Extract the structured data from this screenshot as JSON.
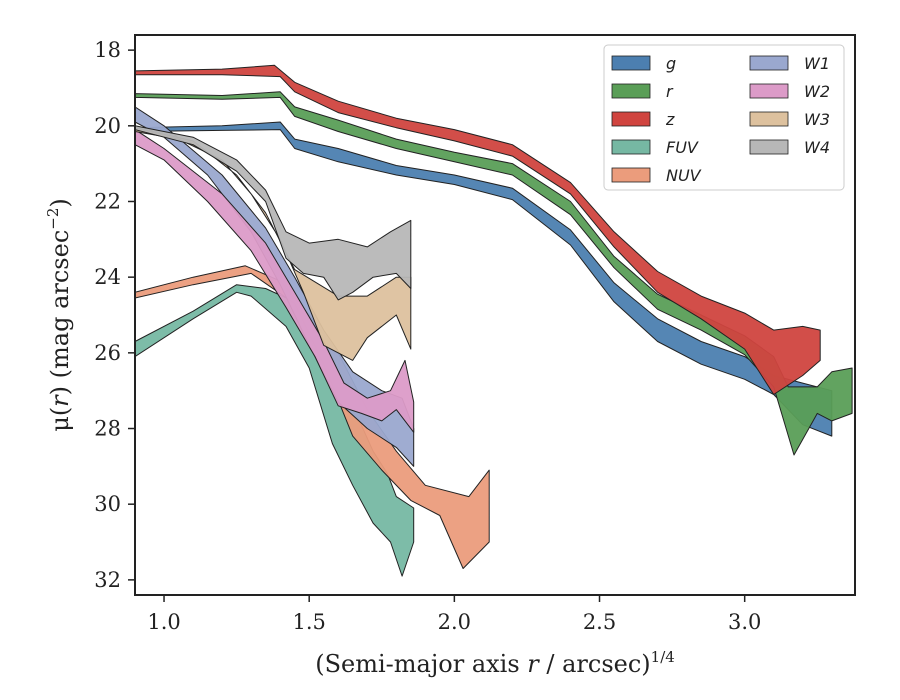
{
  "chart_data": {
    "type": "area",
    "xlabel": {
      "main": "(Semi-major axis ",
      "var": "r",
      "rest": " / arcsec)",
      "sup": "1/4"
    },
    "ylabel": {
      "main": "μ(",
      "var": "r",
      "rest": ") (mag arcsec",
      "sup": "−2",
      "end": ")"
    },
    "xlim": [
      0.9,
      3.38
    ],
    "ylim": [
      32.4,
      17.6
    ],
    "y_inverted": true,
    "xticks": [
      1.0,
      1.5,
      2.0,
      2.5,
      3.0
    ],
    "xtick_labels": [
      "1.0",
      "1.5",
      "2.0",
      "2.5",
      "3.0"
    ],
    "yticks": [
      18,
      20,
      22,
      24,
      26,
      28,
      30,
      32
    ],
    "ytick_labels": [
      "18",
      "20",
      "22",
      "24",
      "26",
      "28",
      "30",
      "32"
    ],
    "legend_position": "top-right",
    "legend_columns": 2,
    "series": [
      {
        "name": "g",
        "color": "#4c7fb0",
        "upper": [
          [
            0.9,
            20.05
          ],
          [
            1.2,
            20.0
          ],
          [
            1.4,
            19.9
          ],
          [
            1.45,
            20.35
          ],
          [
            1.6,
            20.6
          ],
          [
            1.8,
            21.05
          ],
          [
            2.0,
            21.3
          ],
          [
            2.2,
            21.65
          ],
          [
            2.4,
            22.75
          ],
          [
            2.55,
            24.15
          ],
          [
            2.7,
            25.1
          ],
          [
            2.85,
            25.7
          ],
          [
            3.0,
            26.1
          ],
          [
            3.1,
            26.6
          ],
          [
            3.2,
            26.8
          ],
          [
            3.3,
            27.0
          ]
        ],
        "lower": [
          [
            3.3,
            28.2
          ],
          [
            3.2,
            27.9
          ],
          [
            3.1,
            27.1
          ],
          [
            3.0,
            26.7
          ],
          [
            2.85,
            26.3
          ],
          [
            2.7,
            25.7
          ],
          [
            2.55,
            24.65
          ],
          [
            2.4,
            23.15
          ],
          [
            2.2,
            21.95
          ],
          [
            2.0,
            21.55
          ],
          [
            1.8,
            21.3
          ],
          [
            1.6,
            20.95
          ],
          [
            1.45,
            20.6
          ],
          [
            1.4,
            20.1
          ],
          [
            1.2,
            20.12
          ],
          [
            0.9,
            20.15
          ]
        ]
      },
      {
        "name": "r",
        "color": "#5a9e57",
        "upper": [
          [
            0.9,
            19.15
          ],
          [
            1.2,
            19.2
          ],
          [
            1.4,
            19.1
          ],
          [
            1.45,
            19.5
          ],
          [
            1.6,
            19.85
          ],
          [
            1.8,
            20.35
          ],
          [
            2.0,
            20.7
          ],
          [
            2.2,
            21.0
          ],
          [
            2.4,
            22.0
          ],
          [
            2.55,
            23.45
          ],
          [
            2.7,
            24.45
          ],
          [
            2.85,
            25.0
          ],
          [
            3.0,
            25.55
          ],
          [
            3.1,
            26.1
          ],
          [
            3.15,
            26.9
          ],
          [
            3.25,
            26.9
          ],
          [
            3.3,
            26.5
          ],
          [
            3.37,
            26.4
          ]
        ],
        "lower": [
          [
            3.37,
            27.6
          ],
          [
            3.3,
            27.8
          ],
          [
            3.25,
            27.6
          ],
          [
            3.17,
            28.7
          ],
          [
            3.1,
            26.9
          ],
          [
            3.0,
            26.05
          ],
          [
            2.85,
            25.4
          ],
          [
            2.7,
            24.85
          ],
          [
            2.55,
            23.75
          ],
          [
            2.4,
            22.35
          ],
          [
            2.2,
            21.3
          ],
          [
            2.0,
            20.95
          ],
          [
            1.8,
            20.6
          ],
          [
            1.6,
            20.15
          ],
          [
            1.45,
            19.75
          ],
          [
            1.4,
            19.25
          ],
          [
            1.2,
            19.3
          ],
          [
            0.9,
            19.25
          ]
        ]
      },
      {
        "name": "z",
        "color": "#d0443f",
        "upper": [
          [
            0.9,
            18.55
          ],
          [
            1.2,
            18.5
          ],
          [
            1.38,
            18.4
          ],
          [
            1.45,
            18.85
          ],
          [
            1.6,
            19.35
          ],
          [
            1.8,
            19.8
          ],
          [
            2.0,
            20.1
          ],
          [
            2.2,
            20.5
          ],
          [
            2.4,
            21.5
          ],
          [
            2.55,
            22.8
          ],
          [
            2.7,
            23.85
          ],
          [
            2.85,
            24.5
          ],
          [
            3.0,
            24.95
          ],
          [
            3.1,
            25.4
          ],
          [
            3.2,
            25.3
          ],
          [
            3.26,
            25.4
          ]
        ],
        "lower": [
          [
            3.26,
            26.2
          ],
          [
            3.2,
            26.6
          ],
          [
            3.1,
            27.1
          ],
          [
            3.0,
            25.9
          ],
          [
            2.85,
            25.1
          ],
          [
            2.7,
            24.4
          ],
          [
            2.55,
            23.2
          ],
          [
            2.4,
            21.8
          ],
          [
            2.2,
            20.8
          ],
          [
            2.0,
            20.4
          ],
          [
            1.8,
            20.05
          ],
          [
            1.6,
            19.65
          ],
          [
            1.45,
            19.1
          ],
          [
            1.4,
            18.7
          ],
          [
            1.2,
            18.65
          ],
          [
            0.9,
            18.65
          ]
        ]
      },
      {
        "name": "FUV",
        "color": "#76b8a3",
        "upper": [
          [
            0.9,
            25.7
          ],
          [
            1.1,
            24.9
          ],
          [
            1.25,
            24.2
          ],
          [
            1.35,
            24.3
          ],
          [
            1.45,
            24.65
          ],
          [
            1.55,
            25.8
          ],
          [
            1.65,
            27.4
          ],
          [
            1.72,
            28.6
          ],
          [
            1.77,
            29.2
          ],
          [
            1.8,
            29.8
          ],
          [
            1.86,
            30.1
          ]
        ],
        "lower": [
          [
            1.86,
            31.0
          ],
          [
            1.82,
            31.9
          ],
          [
            1.78,
            31.0
          ],
          [
            1.72,
            30.5
          ],
          [
            1.65,
            29.5
          ],
          [
            1.58,
            28.4
          ],
          [
            1.5,
            26.4
          ],
          [
            1.42,
            25.3
          ],
          [
            1.3,
            24.5
          ],
          [
            1.25,
            24.4
          ],
          [
            1.1,
            25.1
          ],
          [
            0.9,
            26.1
          ]
        ]
      },
      {
        "name": "NUV",
        "color": "#eb9c7c",
        "upper": [
          [
            0.9,
            24.4
          ],
          [
            1.1,
            24.0
          ],
          [
            1.28,
            23.7
          ],
          [
            1.4,
            24.1
          ],
          [
            1.5,
            25.0
          ],
          [
            1.6,
            26.0
          ],
          [
            1.7,
            27.5
          ],
          [
            1.8,
            28.6
          ],
          [
            1.9,
            29.5
          ],
          [
            2.05,
            29.8
          ],
          [
            2.12,
            29.1
          ]
        ],
        "lower": [
          [
            2.12,
            31.0
          ],
          [
            2.03,
            31.7
          ],
          [
            1.95,
            30.3
          ],
          [
            1.85,
            29.9
          ],
          [
            1.75,
            29.1
          ],
          [
            1.65,
            28.2
          ],
          [
            1.55,
            26.3
          ],
          [
            1.45,
            24.7
          ],
          [
            1.3,
            23.9
          ],
          [
            1.1,
            24.2
          ],
          [
            0.9,
            24.55
          ]
        ]
      },
      {
        "name": "W1",
        "color": "#9aa8cf",
        "upper": [
          [
            0.9,
            19.5
          ],
          [
            1.0,
            20.0
          ],
          [
            1.2,
            21.3
          ],
          [
            1.35,
            22.7
          ],
          [
            1.45,
            24.0
          ],
          [
            1.55,
            25.4
          ],
          [
            1.65,
            26.5
          ],
          [
            1.75,
            27.0
          ],
          [
            1.82,
            27.2
          ],
          [
            1.86,
            28.0
          ]
        ],
        "lower": [
          [
            1.86,
            29.0
          ],
          [
            1.8,
            28.5
          ],
          [
            1.7,
            28.0
          ],
          [
            1.6,
            27.3
          ],
          [
            1.5,
            25.8
          ],
          [
            1.4,
            24.2
          ],
          [
            1.3,
            22.8
          ],
          [
            1.15,
            21.3
          ],
          [
            1.0,
            20.3
          ],
          [
            0.9,
            19.9
          ]
        ]
      },
      {
        "name": "W2",
        "color": "#dc9bc8",
        "upper": [
          [
            0.9,
            20.1
          ],
          [
            1.0,
            20.6
          ],
          [
            1.2,
            21.8
          ],
          [
            1.35,
            23.1
          ],
          [
            1.45,
            24.4
          ],
          [
            1.55,
            25.7
          ],
          [
            1.62,
            26.8
          ],
          [
            1.7,
            27.2
          ],
          [
            1.78,
            27.0
          ],
          [
            1.83,
            26.2
          ],
          [
            1.86,
            27.3
          ]
        ],
        "lower": [
          [
            1.86,
            28.1
          ],
          [
            1.8,
            27.5
          ],
          [
            1.75,
            27.8
          ],
          [
            1.68,
            27.6
          ],
          [
            1.6,
            27.4
          ],
          [
            1.52,
            26.1
          ],
          [
            1.42,
            24.8
          ],
          [
            1.3,
            23.3
          ],
          [
            1.15,
            22.0
          ],
          [
            1.0,
            20.9
          ],
          [
            0.9,
            20.5
          ]
        ]
      },
      {
        "name": "W3",
        "color": "#ddc19e",
        "upper": [
          [
            0.9,
            20.05
          ],
          [
            1.1,
            20.4
          ],
          [
            1.25,
            21.3
          ],
          [
            1.35,
            22.3
          ],
          [
            1.45,
            23.8
          ],
          [
            1.6,
            24.5
          ],
          [
            1.7,
            24.5
          ],
          [
            1.8,
            24.0
          ],
          [
            1.85,
            24.0
          ]
        ],
        "lower": [
          [
            1.85,
            25.9
          ],
          [
            1.8,
            25.0
          ],
          [
            1.7,
            25.6
          ],
          [
            1.65,
            26.2
          ],
          [
            1.55,
            25.8
          ],
          [
            1.48,
            24.4
          ],
          [
            1.4,
            23.0
          ],
          [
            1.3,
            21.8
          ],
          [
            1.2,
            20.9
          ],
          [
            1.05,
            20.35
          ],
          [
            0.9,
            20.15
          ]
        ]
      },
      {
        "name": "W4",
        "color": "#b7b7b7",
        "upper": [
          [
            0.9,
            20.0
          ],
          [
            1.1,
            20.3
          ],
          [
            1.25,
            20.9
          ],
          [
            1.35,
            21.7
          ],
          [
            1.42,
            22.8
          ],
          [
            1.5,
            23.1
          ],
          [
            1.6,
            23.0
          ],
          [
            1.7,
            23.2
          ],
          [
            1.78,
            22.8
          ],
          [
            1.85,
            22.5
          ]
        ],
        "lower": [
          [
            1.85,
            24.3
          ],
          [
            1.8,
            23.9
          ],
          [
            1.72,
            24.0
          ],
          [
            1.65,
            24.4
          ],
          [
            1.6,
            24.6
          ],
          [
            1.55,
            24.0
          ],
          [
            1.48,
            23.9
          ],
          [
            1.42,
            23.5
          ],
          [
            1.35,
            22.0
          ],
          [
            1.25,
            21.2
          ],
          [
            1.1,
            20.5
          ],
          [
            0.9,
            20.1
          ]
        ]
      }
    ]
  }
}
